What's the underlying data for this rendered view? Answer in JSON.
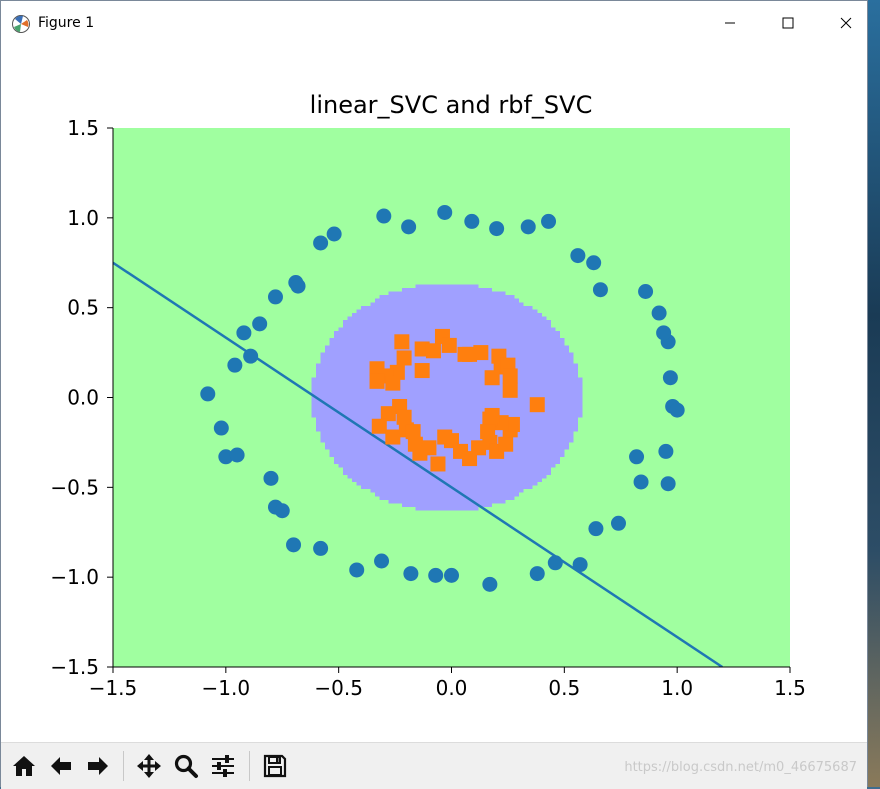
{
  "window": {
    "title": "Figure 1",
    "icons": {
      "app": "matplotlib-icon",
      "minimize": "minimize-icon",
      "maximize": "maximize-icon",
      "close": "close-icon"
    }
  },
  "toolbar": {
    "buttons": [
      {
        "name": "home-button",
        "icon": "home-icon"
      },
      {
        "name": "back-button",
        "icon": "arrow-left-icon"
      },
      {
        "name": "forward-button",
        "icon": "arrow-right-icon"
      },
      {
        "name": "pan-button",
        "icon": "move-icon"
      },
      {
        "name": "zoom-button",
        "icon": "zoom-icon"
      },
      {
        "name": "configure-subplots-button",
        "icon": "sliders-icon"
      },
      {
        "name": "save-button",
        "icon": "save-icon"
      }
    ],
    "watermark": "https://blog.csdn.net/m0_46675687"
  },
  "chart_data": {
    "type": "scatter",
    "title": "linear_SVC and rbf_SVC",
    "xlabel": "",
    "ylabel": "",
    "xlim": [
      -1.5,
      1.5
    ],
    "ylim": [
      -1.5,
      1.5
    ],
    "xticks": [
      -1.5,
      -1.0,
      -0.5,
      0.0,
      0.5,
      1.0,
      1.5
    ],
    "yticks": [
      -1.5,
      -1.0,
      -0.5,
      0.0,
      0.5,
      1.0,
      1.5
    ],
    "xtick_labels": [
      "−1.5",
      "−1.0",
      "−0.5",
      "0.0",
      "0.5",
      "1.0",
      "1.5"
    ],
    "ytick_labels": [
      "−1.5",
      "−1.0",
      "−0.5",
      "0.0",
      "0.5",
      "1.0",
      "1.5"
    ],
    "grid": false,
    "background_region": {
      "color": "#a0ffa0"
    },
    "inner_region": {
      "color": "#a0a0ff",
      "center": [
        -0.02,
        0.0
      ],
      "radius_x": 0.6,
      "radius_y": 0.64
    },
    "decision_line": {
      "points": [
        [
          -1.5,
          0.75
        ],
        [
          1.2,
          -1.5
        ]
      ],
      "color": "#1f77b4"
    },
    "series": [
      {
        "marker": "circle",
        "color": "#1f77b4",
        "points": [
          [
            -0.3,
            1.01
          ],
          [
            -0.03,
            1.03
          ],
          [
            0.09,
            0.98
          ],
          [
            0.2,
            0.94
          ],
          [
            0.34,
            0.95
          ],
          [
            0.43,
            0.98
          ],
          [
            -0.19,
            0.95
          ],
          [
            -0.52,
            0.91
          ],
          [
            -0.58,
            0.86
          ],
          [
            -0.69,
            0.64
          ],
          [
            -0.68,
            0.62
          ],
          [
            -0.78,
            0.56
          ],
          [
            -0.85,
            0.41
          ],
          [
            -0.92,
            0.36
          ],
          [
            -0.89,
            0.23
          ],
          [
            -0.96,
            0.18
          ],
          [
            -1.08,
            0.02
          ],
          [
            -1.02,
            -0.17
          ],
          [
            -1.0,
            -0.33
          ],
          [
            -0.95,
            -0.32
          ],
          [
            -0.8,
            -0.45
          ],
          [
            -0.78,
            -0.61
          ],
          [
            -0.75,
            -0.63
          ],
          [
            -0.7,
            -0.82
          ],
          [
            -0.58,
            -0.84
          ],
          [
            -0.42,
            -0.96
          ],
          [
            -0.31,
            -0.91
          ],
          [
            -0.18,
            -0.98
          ],
          [
            -0.07,
            -0.99
          ],
          [
            0.0,
            -0.99
          ],
          [
            0.17,
            -1.04
          ],
          [
            0.38,
            -0.98
          ],
          [
            0.46,
            -0.92
          ],
          [
            0.57,
            -0.93
          ],
          [
            0.64,
            -0.73
          ],
          [
            0.74,
            -0.7
          ],
          [
            0.82,
            -0.33
          ],
          [
            0.84,
            -0.47
          ],
          [
            0.95,
            -0.3
          ],
          [
            0.96,
            -0.48
          ],
          [
            0.97,
            0.11
          ],
          [
            0.98,
            -0.05
          ],
          [
            1.0,
            -0.07
          ],
          [
            0.96,
            0.31
          ],
          [
            0.94,
            0.36
          ],
          [
            0.92,
            0.47
          ],
          [
            0.86,
            0.59
          ],
          [
            0.66,
            0.6
          ],
          [
            0.63,
            0.75
          ],
          [
            0.56,
            0.79
          ]
        ]
      },
      {
        "marker": "square",
        "color": "#ff7f0e",
        "points": [
          [
            -0.22,
            0.31
          ],
          [
            -0.04,
            0.34
          ],
          [
            -0.13,
            0.27
          ],
          [
            -0.08,
            0.26
          ],
          [
            -0.01,
            0.29
          ],
          [
            0.06,
            0.24
          ],
          [
            0.08,
            0.24
          ],
          [
            0.13,
            0.25
          ],
          [
            0.21,
            0.23
          ],
          [
            0.22,
            0.17
          ],
          [
            0.25,
            0.18
          ],
          [
            0.26,
            0.12
          ],
          [
            0.18,
            0.11
          ],
          [
            0.26,
            0.04
          ],
          [
            0.38,
            -0.04
          ],
          [
            -0.21,
            0.22
          ],
          [
            -0.33,
            0.16
          ],
          [
            -0.24,
            0.14
          ],
          [
            -0.29,
            0.12
          ],
          [
            -0.33,
            0.09
          ],
          [
            -0.26,
            0.08
          ],
          [
            -0.13,
            0.15
          ],
          [
            -0.23,
            -0.05
          ],
          [
            -0.28,
            -0.09
          ],
          [
            -0.21,
            -0.11
          ],
          [
            -0.32,
            -0.16
          ],
          [
            -0.2,
            -0.18
          ],
          [
            -0.17,
            -0.19
          ],
          [
            -0.26,
            -0.22
          ],
          [
            -0.16,
            -0.26
          ],
          [
            -0.14,
            -0.31
          ],
          [
            -0.1,
            -0.28
          ],
          [
            -0.06,
            -0.37
          ],
          [
            -0.03,
            -0.22
          ],
          [
            0.0,
            -0.24
          ],
          [
            0.04,
            -0.3
          ],
          [
            0.08,
            -0.34
          ],
          [
            0.12,
            -0.28
          ],
          [
            0.17,
            -0.25
          ],
          [
            0.2,
            -0.3
          ],
          [
            0.24,
            -0.26
          ],
          [
            0.26,
            -0.18
          ],
          [
            0.27,
            -0.15
          ],
          [
            0.22,
            -0.14
          ],
          [
            0.17,
            -0.12
          ],
          [
            0.16,
            -0.19
          ],
          [
            0.18,
            -0.1
          ]
        ]
      }
    ]
  }
}
